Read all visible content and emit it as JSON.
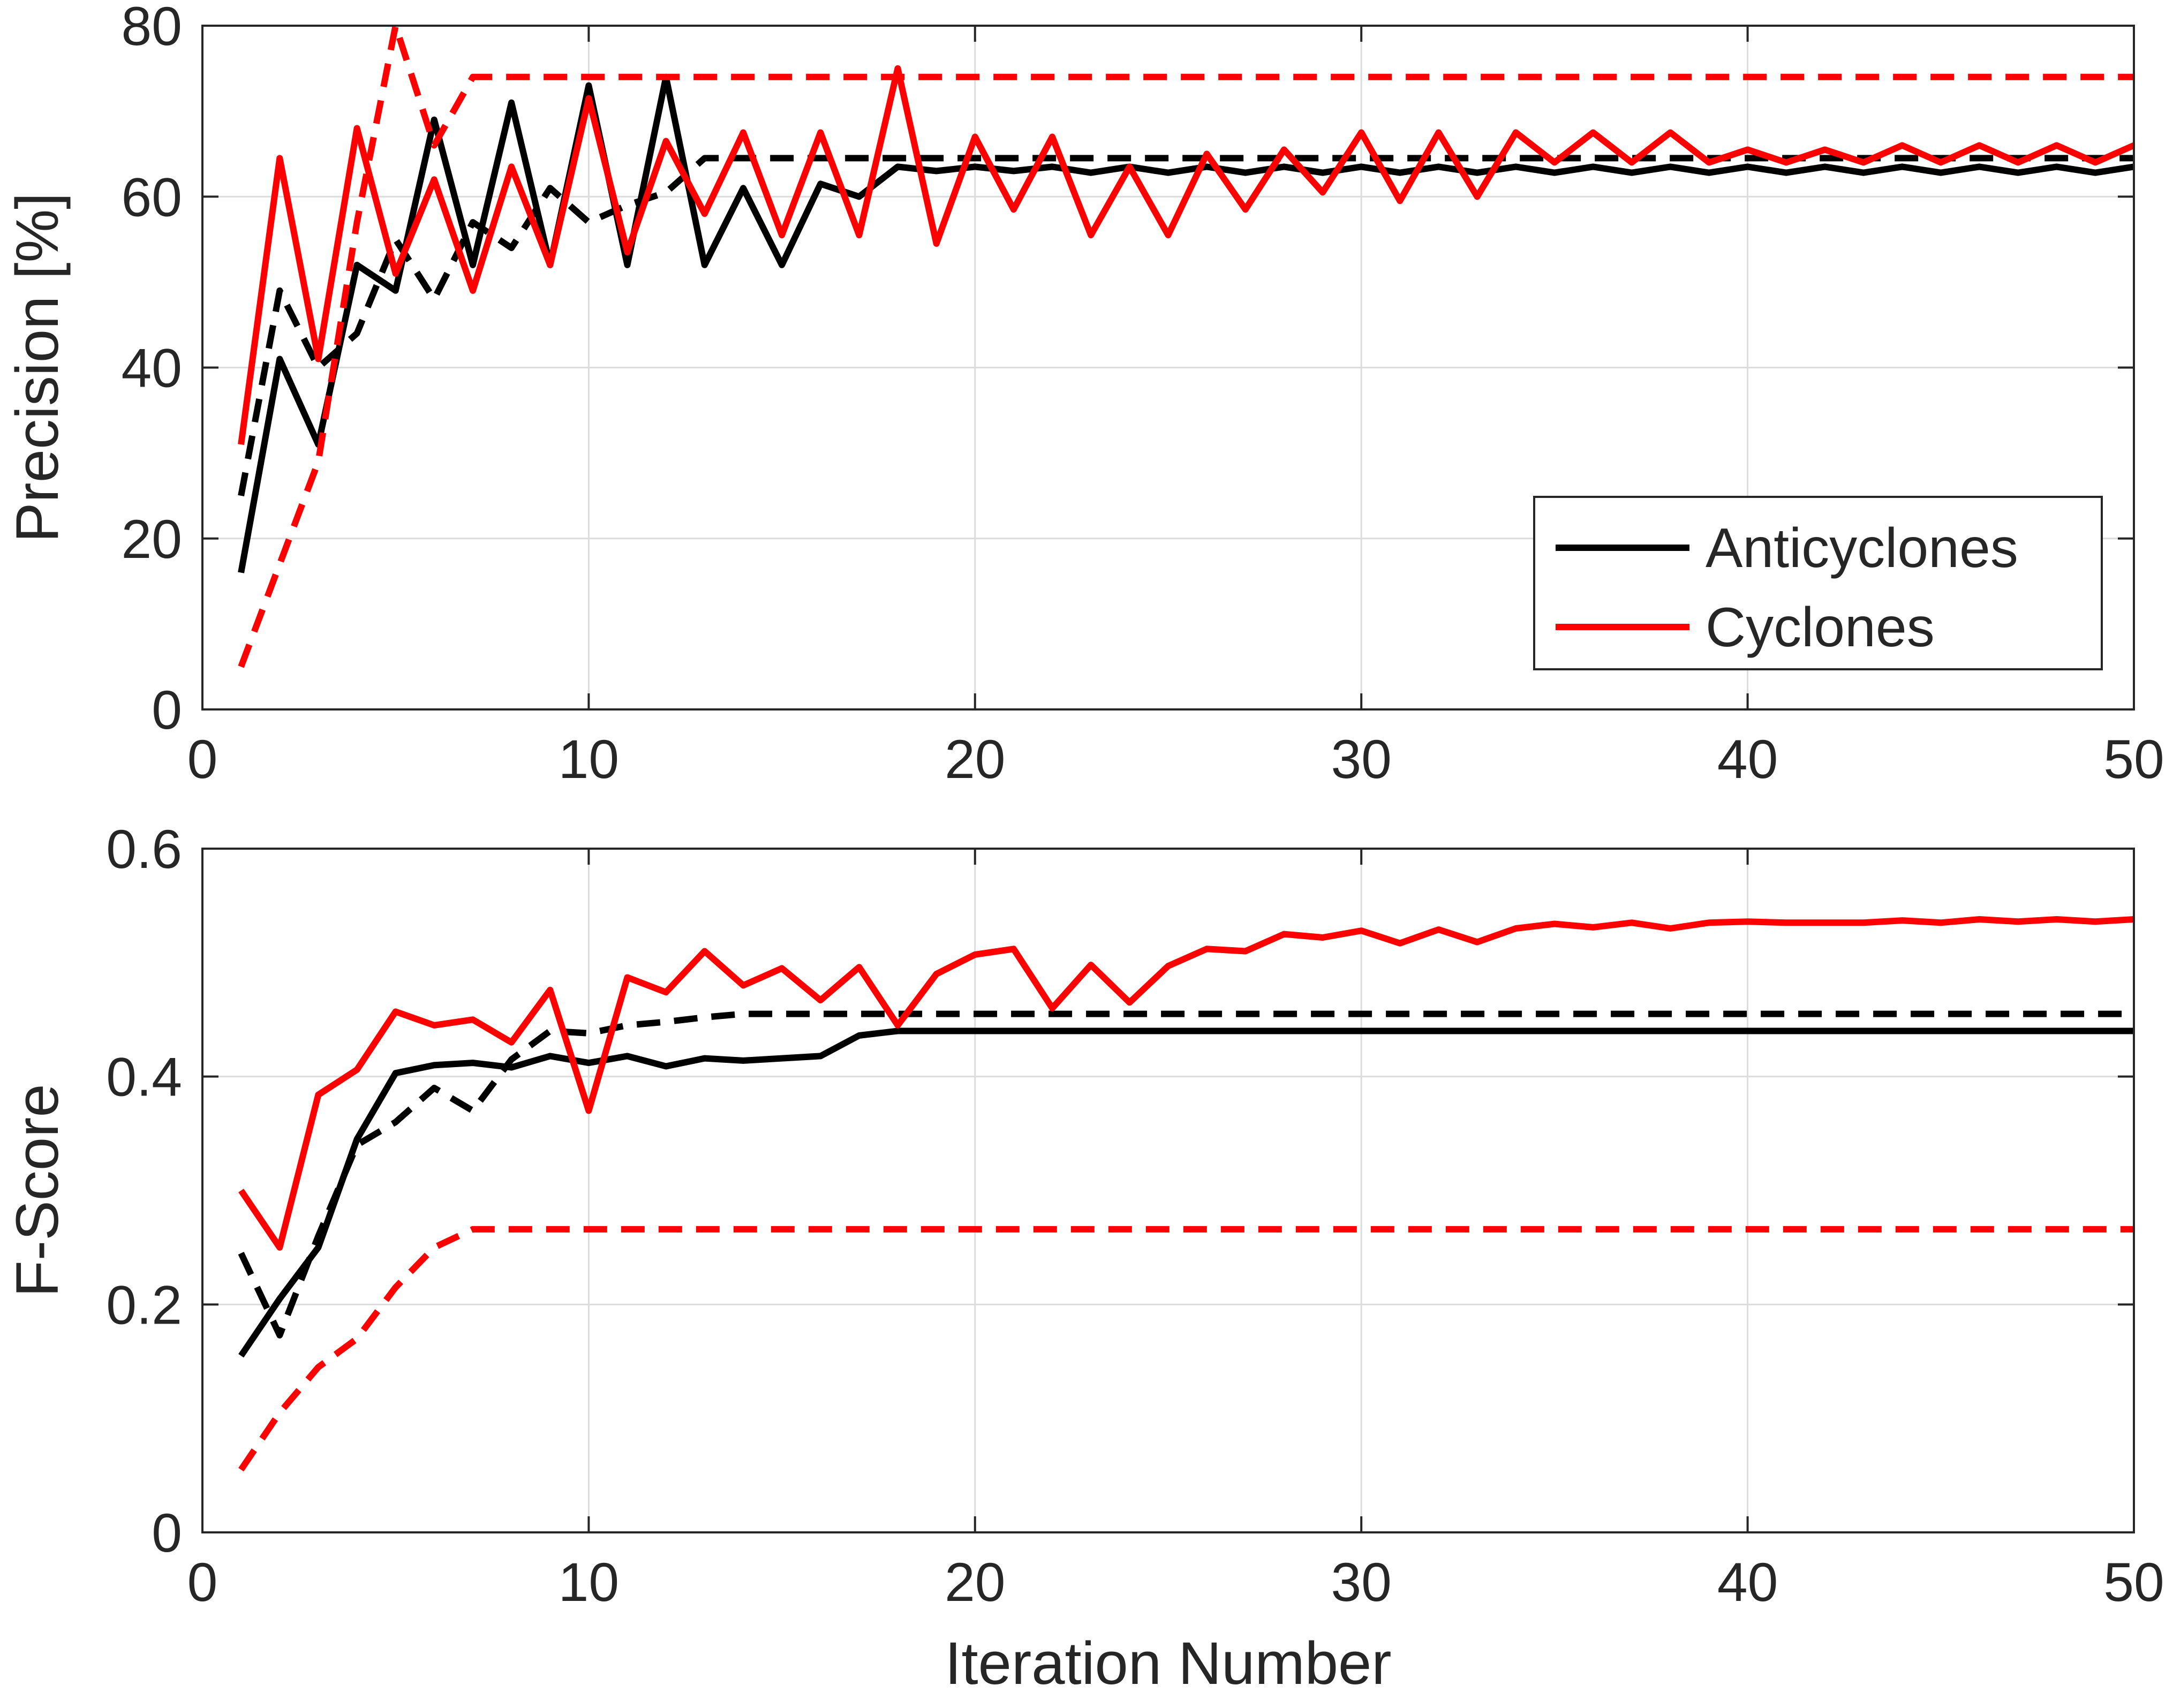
{
  "colors": {
    "anticyclones": "#000000",
    "cyclones": "#ff0000"
  },
  "legend": {
    "placement": "lower-right of top panel",
    "entries": [
      {
        "label": "Anticyclones",
        "color": "#000000"
      },
      {
        "label": "Cyclones",
        "color": "#ff0000"
      }
    ]
  },
  "chart_data": [
    {
      "type": "line",
      "title": "",
      "xlabel": "",
      "ylabel": "Precision [%]",
      "xlim": [
        0,
        50
      ],
      "ylim": [
        0,
        80
      ],
      "xticks": [
        0,
        10,
        20,
        30,
        40,
        50
      ],
      "yticks": [
        0,
        20,
        40,
        60,
        80
      ],
      "grid": true,
      "series": [
        {
          "name": "Anticyclones",
          "color": "#000000",
          "style": "solid",
          "x": [
            1,
            2,
            3,
            4,
            5,
            6,
            7,
            8,
            9,
            10,
            11,
            12,
            13,
            14,
            15,
            16,
            17,
            18,
            19,
            20,
            21,
            22,
            23,
            24,
            25,
            26,
            27,
            28,
            29,
            30,
            31,
            32,
            33,
            34,
            35,
            36,
            37,
            38,
            39,
            40,
            41,
            42,
            43,
            44,
            45,
            46,
            47,
            48,
            49,
            50
          ],
          "values": [
            16,
            41,
            31,
            52,
            49,
            69,
            52,
            71,
            52,
            73,
            52,
            74,
            52,
            61,
            52,
            61.5,
            60,
            63.5,
            63,
            63.5,
            63,
            63.5,
            62.8,
            63.5,
            62.8,
            63.5,
            62.8,
            63.5,
            62.8,
            63.5,
            62.8,
            63.5,
            62.8,
            63.5,
            62.8,
            63.5,
            62.8,
            63.5,
            62.8,
            63.5,
            62.8,
            63.5,
            62.8,
            63.5,
            62.8,
            63.5,
            62.8,
            63.5,
            62.8,
            63.5
          ]
        },
        {
          "name": "",
          "color": "#000000",
          "style": "dashed",
          "x": [
            1,
            2,
            3,
            4,
            5,
            6,
            7,
            8,
            9,
            10,
            11,
            12,
            13,
            14,
            15,
            16,
            17,
            18,
            19,
            20,
            21,
            22,
            23,
            24,
            25,
            26,
            27,
            28,
            29,
            30,
            31,
            32,
            33,
            34,
            35,
            36,
            37,
            38,
            39,
            40,
            41,
            42,
            43,
            44,
            45,
            46,
            47,
            48,
            49,
            50
          ],
          "values": [
            25,
            49,
            40,
            44,
            55,
            48,
            57,
            54,
            61,
            57,
            59,
            60.5,
            64.5,
            64.5,
            64.5,
            64.5,
            64.5,
            64.5,
            64.5,
            64.5,
            64.5,
            64.5,
            64.5,
            64.5,
            64.5,
            64.5,
            64.5,
            64.5,
            64.5,
            64.5,
            64.5,
            64.5,
            64.5,
            64.5,
            64.5,
            64.5,
            64.5,
            64.5,
            64.5,
            64.5,
            64.5,
            64.5,
            64.5,
            64.5,
            64.5,
            64.5,
            64.5,
            64.5,
            64.5,
            64.5
          ]
        },
        {
          "name": "Cyclones",
          "color": "#ff0000",
          "style": "solid",
          "x": [
            1,
            2,
            3,
            4,
            5,
            6,
            7,
            8,
            9,
            10,
            11,
            12,
            13,
            14,
            15,
            16,
            17,
            18,
            19,
            20,
            21,
            22,
            23,
            24,
            25,
            26,
            27,
            28,
            29,
            30,
            31,
            32,
            33,
            34,
            35,
            36,
            37,
            38,
            39,
            40,
            41,
            42,
            43,
            44,
            45,
            46,
            47,
            48,
            49,
            50
          ],
          "values": [
            31,
            64.5,
            41,
            68,
            51,
            62,
            49,
            63.5,
            52,
            71.5,
            53.5,
            66.5,
            58,
            67.5,
            55.5,
            67.5,
            55.5,
            75,
            54.5,
            67,
            58.5,
            67,
            55.5,
            63.5,
            55.5,
            65,
            58.5,
            65.5,
            60.5,
            67.5,
            59.5,
            67.5,
            60,
            67.5,
            64,
            67.5,
            64,
            67.5,
            64,
            65.5,
            64,
            65.5,
            64,
            66,
            64,
            66,
            64,
            66,
            64,
            66
          ]
        },
        {
          "name": "",
          "color": "#ff0000",
          "style": "dashed",
          "x": [
            1,
            2,
            3,
            4,
            5,
            6,
            7,
            8,
            9,
            10,
            11,
            12,
            13,
            14,
            15,
            16,
            17,
            18,
            19,
            20,
            21,
            22,
            23,
            24,
            25,
            26,
            27,
            28,
            29,
            30,
            31,
            32,
            33,
            34,
            35,
            36,
            37,
            38,
            39,
            40,
            41,
            42,
            43,
            44,
            45,
            46,
            47,
            48,
            49,
            50
          ],
          "values": [
            5,
            17,
            29,
            57,
            80,
            66,
            74,
            74,
            74,
            74,
            74,
            74,
            74,
            74,
            74,
            74,
            74,
            74,
            74,
            74,
            74,
            74,
            74,
            74,
            74,
            74,
            74,
            74,
            74,
            74,
            74,
            74,
            74,
            74,
            74,
            74,
            74,
            74,
            74,
            74,
            74,
            74,
            74,
            74,
            74,
            74,
            74,
            74,
            74,
            74
          ]
        }
      ]
    },
    {
      "type": "line",
      "title": "",
      "xlabel": "Iteration Number",
      "ylabel": "F-Score",
      "xlim": [
        0,
        50
      ],
      "ylim": [
        0,
        0.6
      ],
      "xticks": [
        0,
        10,
        20,
        30,
        40,
        50
      ],
      "yticks": [
        0,
        0.2,
        0.4,
        0.6
      ],
      "grid": true,
      "series": [
        {
          "name": "Anticyclones",
          "color": "#000000",
          "style": "solid",
          "x": [
            1,
            2,
            3,
            4,
            5,
            6,
            7,
            8,
            9,
            10,
            11,
            12,
            13,
            14,
            15,
            16,
            17,
            18,
            19,
            20,
            21,
            22,
            23,
            24,
            25,
            26,
            27,
            28,
            29,
            30,
            31,
            32,
            33,
            34,
            35,
            36,
            37,
            38,
            39,
            40,
            41,
            42,
            43,
            44,
            45,
            46,
            47,
            48,
            49,
            50
          ],
          "values": [
            0.155,
            0.205,
            0.25,
            0.345,
            0.403,
            0.41,
            0.412,
            0.408,
            0.418,
            0.412,
            0.418,
            0.409,
            0.416,
            0.414,
            0.416,
            0.418,
            0.436,
            0.44,
            0.44,
            0.44,
            0.44,
            0.44,
            0.44,
            0.44,
            0.44,
            0.44,
            0.44,
            0.44,
            0.44,
            0.44,
            0.44,
            0.44,
            0.44,
            0.44,
            0.44,
            0.44,
            0.44,
            0.44,
            0.44,
            0.44,
            0.44,
            0.44,
            0.44,
            0.44,
            0.44,
            0.44,
            0.44,
            0.44,
            0.44,
            0.44
          ]
        },
        {
          "name": "",
          "color": "#000000",
          "style": "dashed",
          "x": [
            1,
            2,
            3,
            4,
            5,
            6,
            7,
            8,
            9,
            10,
            11,
            12,
            13,
            14,
            15,
            16,
            17,
            18,
            19,
            20,
            21,
            22,
            23,
            24,
            25,
            26,
            27,
            28,
            29,
            30,
            31,
            32,
            33,
            34,
            35,
            36,
            37,
            38,
            39,
            40,
            41,
            42,
            43,
            44,
            45,
            46,
            47,
            48,
            49,
            50
          ],
          "values": [
            0.245,
            0.173,
            0.26,
            0.34,
            0.36,
            0.39,
            0.37,
            0.415,
            0.44,
            0.438,
            0.445,
            0.448,
            0.452,
            0.455,
            0.455,
            0.455,
            0.455,
            0.455,
            0.455,
            0.455,
            0.455,
            0.455,
            0.455,
            0.455,
            0.455,
            0.455,
            0.455,
            0.455,
            0.455,
            0.455,
            0.455,
            0.455,
            0.455,
            0.455,
            0.455,
            0.455,
            0.455,
            0.455,
            0.455,
            0.455,
            0.455,
            0.455,
            0.455,
            0.455,
            0.455,
            0.455,
            0.455,
            0.455,
            0.455,
            0.455
          ]
        },
        {
          "name": "Cyclones",
          "color": "#ff0000",
          "style": "solid",
          "x": [
            1,
            2,
            3,
            4,
            5,
            6,
            7,
            8,
            9,
            10,
            11,
            12,
            13,
            14,
            15,
            16,
            17,
            18,
            19,
            20,
            21,
            22,
            23,
            24,
            25,
            26,
            27,
            28,
            29,
            30,
            31,
            32,
            33,
            34,
            35,
            36,
            37,
            38,
            39,
            40,
            41,
            42,
            43,
            44,
            45,
            46,
            47,
            48,
            49,
            50
          ],
          "values": [
            0.3,
            0.25,
            0.384,
            0.406,
            0.457,
            0.445,
            0.45,
            0.43,
            0.476,
            0.37,
            0.487,
            0.474,
            0.51,
            0.48,
            0.495,
            0.467,
            0.496,
            0.445,
            0.49,
            0.507,
            0.512,
            0.46,
            0.498,
            0.465,
            0.497,
            0.512,
            0.51,
            0.525,
            0.522,
            0.528,
            0.517,
            0.529,
            0.518,
            0.53,
            0.534,
            0.531,
            0.535,
            0.53,
            0.535,
            0.536,
            0.535,
            0.535,
            0.535,
            0.537,
            0.535,
            0.538,
            0.536,
            0.538,
            0.536,
            0.538
          ]
        },
        {
          "name": "",
          "color": "#ff0000",
          "style": "dashed",
          "x": [
            1,
            2,
            3,
            4,
            5,
            6,
            7,
            8,
            9,
            10,
            11,
            12,
            13,
            14,
            15,
            16,
            17,
            18,
            19,
            20,
            21,
            22,
            23,
            24,
            25,
            26,
            27,
            28,
            29,
            30,
            31,
            32,
            33,
            34,
            35,
            36,
            37,
            38,
            39,
            40,
            41,
            42,
            43,
            44,
            45,
            46,
            47,
            48,
            49,
            50
          ],
          "values": [
            0.055,
            0.105,
            0.145,
            0.17,
            0.215,
            0.25,
            0.266,
            0.266,
            0.266,
            0.266,
            0.266,
            0.266,
            0.266,
            0.266,
            0.266,
            0.266,
            0.266,
            0.266,
            0.266,
            0.266,
            0.266,
            0.266,
            0.266,
            0.266,
            0.266,
            0.266,
            0.266,
            0.266,
            0.266,
            0.266,
            0.266,
            0.266,
            0.266,
            0.266,
            0.266,
            0.266,
            0.266,
            0.266,
            0.266,
            0.266,
            0.266,
            0.266,
            0.266,
            0.266,
            0.266,
            0.266,
            0.266,
            0.266,
            0.266,
            0.266
          ]
        }
      ]
    }
  ]
}
